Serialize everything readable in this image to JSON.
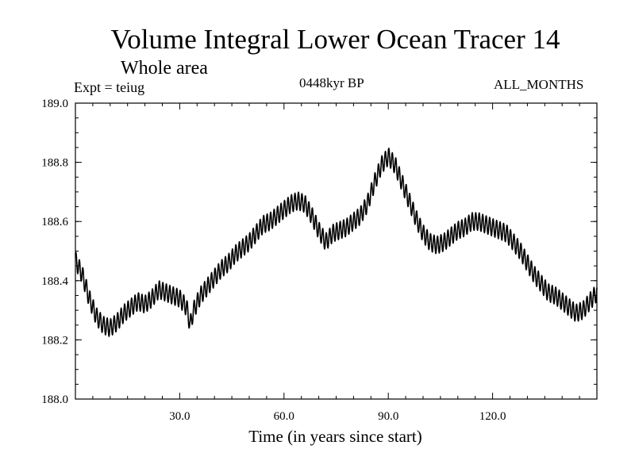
{
  "header": {
    "title": "Volume Integral Lower Ocean Tracer 14",
    "subtitle": "Whole area",
    "expt": "Expt = teiug",
    "period": "0448kyr BP",
    "months": "ALL_MONTHS"
  },
  "colors": {
    "line": "#000000",
    "axes": "#000000",
    "background": "#ffffff"
  },
  "chart_data": {
    "type": "line",
    "title": "Volume Integral Lower Ocean Tracer 14",
    "subtitle": "Whole area",
    "xlabel": "Time (in years since start)",
    "ylabel": "",
    "xlim": [
      0,
      150
    ],
    "ylim": [
      188.0,
      189.0
    ],
    "xticks": [
      30,
      60,
      90,
      120
    ],
    "xtick_labels": [
      "30.0",
      "60.0",
      "90.0",
      "120.0"
    ],
    "yticks": [
      188.0,
      188.2,
      188.4,
      188.6,
      188.8,
      189.0
    ],
    "ytick_labels": [
      "188.0",
      "188.2",
      "188.4",
      "188.6",
      "188.8",
      "189.0"
    ],
    "grid": false,
    "series": [
      {
        "name": "Volume Integral Lower Ocean Tracer 14",
        "oscillation_period_years": 1,
        "x": [
          0,
          2,
          4,
          6,
          8,
          10,
          12,
          14,
          16,
          18,
          20,
          22,
          24,
          26,
          28,
          30,
          32,
          33,
          34,
          36,
          38,
          40,
          42,
          44,
          46,
          48,
          50,
          52,
          54,
          56,
          58,
          60,
          62,
          64,
          66,
          68,
          70,
          72,
          74,
          76,
          78,
          80,
          82,
          84,
          86,
          88,
          90,
          92,
          94,
          96,
          98,
          100,
          102,
          104,
          106,
          108,
          110,
          112,
          114,
          116,
          118,
          120,
          122,
          124,
          126,
          128,
          130,
          132,
          134,
          136,
          138,
          140,
          142,
          144,
          146,
          148,
          150
        ],
        "values": [
          188.47,
          188.42,
          188.34,
          188.28,
          188.25,
          188.24,
          188.26,
          188.29,
          188.31,
          188.33,
          188.32,
          188.34,
          188.37,
          188.36,
          188.35,
          188.34,
          188.31,
          188.25,
          188.3,
          188.35,
          188.38,
          188.41,
          188.44,
          188.46,
          188.49,
          188.51,
          188.53,
          188.56,
          188.59,
          188.6,
          188.62,
          188.64,
          188.66,
          188.67,
          188.66,
          188.62,
          188.57,
          188.53,
          188.56,
          188.57,
          188.58,
          188.6,
          188.62,
          188.66,
          188.73,
          188.79,
          188.82,
          188.79,
          188.73,
          188.67,
          188.61,
          188.56,
          188.53,
          188.52,
          188.53,
          188.55,
          188.57,
          188.58,
          188.6,
          188.6,
          188.59,
          188.58,
          188.57,
          188.56,
          188.53,
          188.5,
          188.46,
          188.42,
          188.39,
          188.36,
          188.35,
          188.33,
          188.31,
          188.29,
          188.3,
          188.33,
          188.36
        ],
        "oscillation_amplitude": 0.03
      }
    ]
  }
}
